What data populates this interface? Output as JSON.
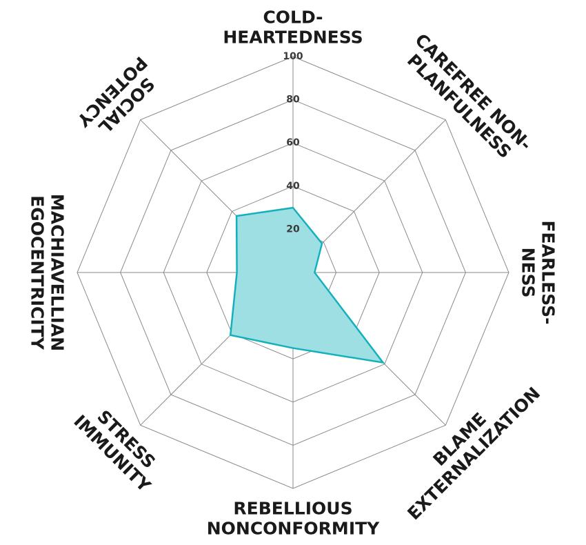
{
  "chart_data": {
    "type": "radar",
    "ylim": [
      0,
      100
    ],
    "ticks": [
      "20",
      "40",
      "60",
      "80",
      "100"
    ],
    "categories": [
      [
        "COLD-",
        "HEARTEDNESS"
      ],
      [
        "CAREFREE NON-",
        "PLANFULNESS"
      ],
      [
        "FEARLESS-",
        "NESS"
      ],
      [
        "BLAME",
        "EXTERNALIZATION"
      ],
      [
        "REBELLIOUS",
        "NONCONFORMITY"
      ],
      [
        "STRESS",
        "IMMUNITY"
      ],
      [
        "MACHIAVELLIAN",
        "EGOCENTRICITY"
      ],
      [
        "SOCIAL",
        "POTENCY"
      ]
    ],
    "series": [
      {
        "values": [
          30,
          19,
          10,
          59,
          35,
          41,
          26,
          37
        ]
      }
    ],
    "colors": {
      "fill": "#9ddfe3",
      "stroke": "#14b1bc",
      "grid": "#8a8a8a"
    }
  }
}
